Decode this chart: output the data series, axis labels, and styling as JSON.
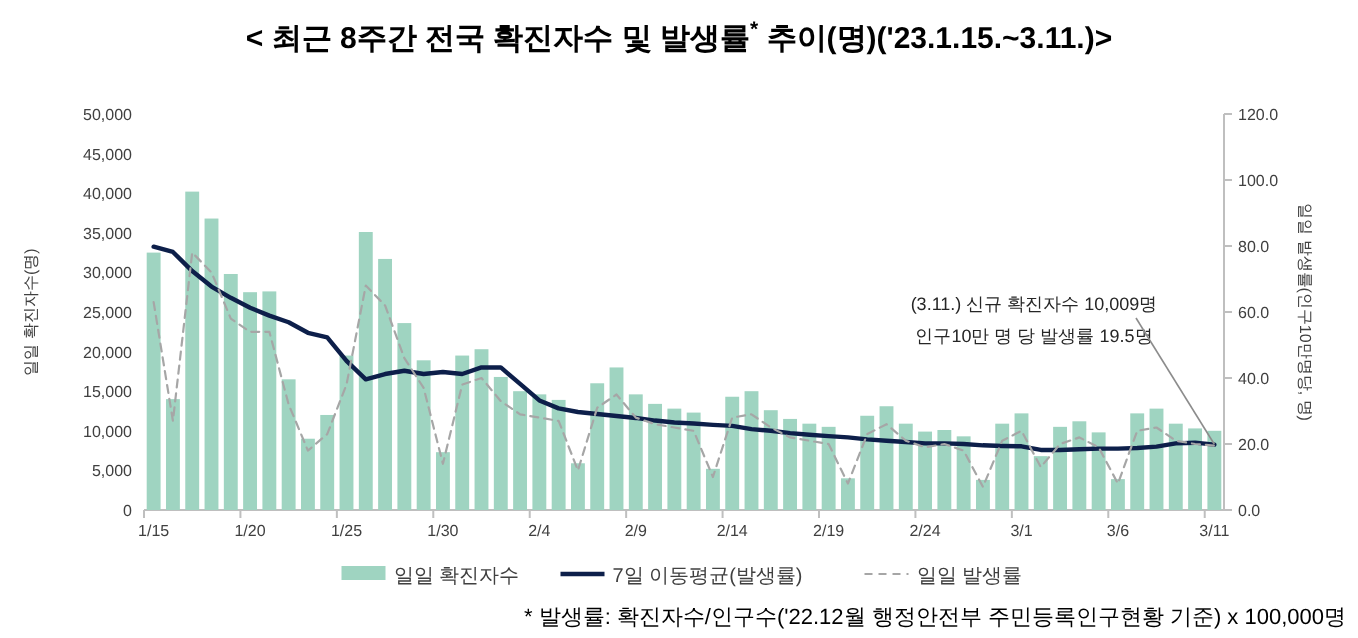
{
  "chart_data": {
    "type": "bar",
    "title": "< 최근 8주간 전국 확진자수 및 발생률$^{*}$ 추이(명)('23.1.15.~3.11.)>",
    "ylabel": "일일 확진자수(명)",
    "y2label": "일일 발생률(인구10만명당, 명)",
    "categories": [
      "1/15",
      null,
      null,
      null,
      null,
      "1/20",
      null,
      null,
      null,
      null,
      "1/25",
      null,
      null,
      null,
      null,
      "1/30",
      null,
      null,
      null,
      null,
      "2/4",
      null,
      null,
      null,
      null,
      "2/9",
      null,
      null,
      null,
      null,
      "2/14",
      null,
      null,
      null,
      null,
      "2/19",
      null,
      null,
      null,
      null,
      "2/24",
      null,
      null,
      null,
      null,
      "3/1",
      null,
      null,
      null,
      null,
      "3/6",
      null,
      null,
      null,
      null,
      "3/11"
    ],
    "series": [
      {
        "name": "일일 확진자수",
        "color": "#9fd4c1",
        "values": [
          32500,
          14000,
          40200,
          36800,
          29800,
          27500,
          27600,
          16500,
          9000,
          12000,
          19500,
          35100,
          31700,
          23600,
          18900,
          7300,
          19500,
          20300,
          16800,
          15000,
          14600,
          13900,
          5900,
          16000,
          18000,
          14600,
          13400,
          12800,
          12300,
          5200,
          14300,
          15000,
          12600,
          11500,
          10900,
          10500,
          4000,
          11900,
          13100,
          10900,
          9900,
          10100,
          9300,
          3800,
          10900,
          12200,
          6800,
          10500,
          11200,
          9800,
          3900,
          12200,
          12800,
          10900,
          10300,
          10000
        ]
      },
      {
        "name": "7일 이동평균(발생률)",
        "type": "line",
        "axis": "y2",
        "color": "#0d1f4a",
        "line_style": "solid",
        "values": [
          79.8,
          78.2,
          72.4,
          67.7,
          64.3,
          61.3,
          58.9,
          56.9,
          53.7,
          52.3,
          45.2,
          39.6,
          41.2,
          42.2,
          41.2,
          41.8,
          41.2,
          43.2,
          43.2,
          38.2,
          33.2,
          30.8,
          29.7,
          29.1,
          28.5,
          27.9,
          27.1,
          26.5,
          26.2,
          25.8,
          25.5,
          24.5,
          24,
          23.3,
          22.8,
          22.4,
          22,
          21.4,
          21,
          20.6,
          20.2,
          20.2,
          20,
          19.6,
          19.4,
          19.3,
          18.2,
          18.2,
          18.4,
          18.6,
          18.6,
          18.8,
          19.2,
          20.2,
          20.4,
          19.8
        ]
      },
      {
        "name": "일일 발생률",
        "type": "line",
        "axis": "y2",
        "color": "#a6a6a6",
        "line_style": "dashed",
        "values": [
          63,
          27,
          78,
          72,
          58,
          54,
          54,
          32,
          18,
          23,
          38,
          68,
          62,
          46,
          37,
          14,
          38,
          40,
          33,
          29,
          28,
          27,
          12,
          31,
          35,
          28,
          26,
          25,
          24,
          10,
          28,
          29,
          25,
          22,
          21,
          20,
          8,
          23,
          26,
          21,
          19,
          20,
          18,
          7,
          21,
          24,
          13,
          20,
          22,
          19,
          8,
          24,
          25,
          21,
          20,
          19.5
        ]
      }
    ],
    "ylim": [
      0,
      50000
    ],
    "yticks": [
      {
        "value": 0,
        "label": "0"
      },
      {
        "value": 5000,
        "label": "5,000"
      },
      {
        "value": 10000,
        "label": "10,000"
      },
      {
        "value": 15000,
        "label": "15,000"
      },
      {
        "value": 20000,
        "label": "20,000"
      },
      {
        "value": 25000,
        "label": "25,000"
      },
      {
        "value": 30000,
        "label": "30,000"
      },
      {
        "value": 35000,
        "label": "35,000"
      },
      {
        "value": 40000,
        "label": "40,000"
      },
      {
        "value": 45000,
        "label": "45,000"
      },
      {
        "value": 50000,
        "label": "50,000"
      }
    ],
    "y2lim": [
      0,
      120
    ],
    "y2ticks": [
      {
        "value": 0,
        "label": "0.0"
      },
      {
        "value": 20,
        "label": "20.0"
      },
      {
        "value": 40,
        "label": "40.0"
      },
      {
        "value": 60,
        "label": "60.0"
      },
      {
        "value": 80,
        "label": "80.0"
      },
      {
        "value": 100,
        "label": "100.0"
      },
      {
        "value": 120,
        "label": "120.0"
      }
    ],
    "annotations": [
      {
        "text": "(3.11.) 신규 확진자수 10,009명\n인구10만 명 당 발생률 19.5명",
        "x": "3/11",
        "y": 8300
      },
      "* 발생률: 확진자수/인구수('22.12월 행정안전부 주민등록인구현황 기준) x 100,000명"
    ],
    "legend": "bottom",
    "grid": false
  }
}
